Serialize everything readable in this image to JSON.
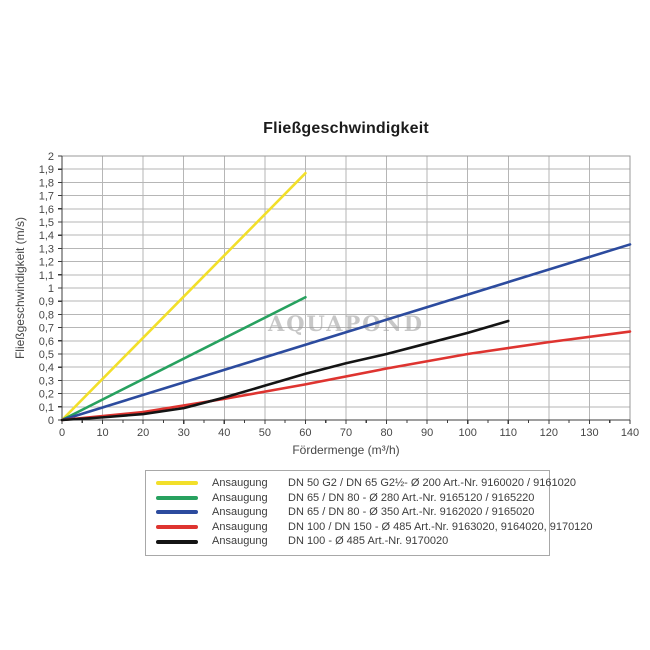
{
  "title": "Fließgeschwindigkeit",
  "watermark": "AQUAPOND",
  "colors": {
    "background": "#ffffff",
    "grid": "#b6b6b6",
    "border": "#9a9a9a",
    "axis": "#3c3c3c",
    "tick_label": "#474747",
    "title": "#1c1c1c",
    "watermark": "#9b9b9b",
    "legend_border": "#a8a8a8",
    "legend_text": "#3d3d3d"
  },
  "chart_data": {
    "type": "line",
    "title": "Fließgeschwindigkeit",
    "xlabel": "Fördermenge (m³/h)",
    "ylabel": "Fließgeschwindigkeit (m/s)",
    "xlim": [
      0,
      140
    ],
    "ylim": [
      0,
      2
    ],
    "grid": true,
    "legend_position": "bottom",
    "x_ticks": [
      0,
      10,
      20,
      30,
      40,
      50,
      60,
      70,
      80,
      90,
      100,
      110,
      120,
      130,
      140
    ],
    "y_ticks": [
      0,
      0.1,
      0.2,
      0.3,
      0.4,
      0.5,
      0.6,
      0.7,
      0.8,
      0.9,
      1,
      1.1,
      1.2,
      1.3,
      1.4,
      1.5,
      1.6,
      1.7,
      1.8,
      1.9,
      2
    ],
    "decimal_separator": ",",
    "series": [
      {
        "name": "Ansaugung",
        "description": "DN 50 G2 / DN 65 G2½- Ø 200 Art.-Nr. 9160020 / 9161020",
        "color": "#f2df2a",
        "points": [
          [
            0,
            0
          ],
          [
            60,
            1.87
          ]
        ]
      },
      {
        "name": "Ansaugung",
        "description": "DN 65 / DN 80 - Ø 280 Art.-Nr. 9165120 / 9165220",
        "color": "#27a15f",
        "points": [
          [
            0,
            0
          ],
          [
            60,
            0.93
          ]
        ]
      },
      {
        "name": "Ansaugung",
        "description": "DN 65 / DN 80  - Ø 350 Art.-Nr. 9162020 / 9165020",
        "color": "#2c4b9e",
        "points": [
          [
            0,
            0
          ],
          [
            140,
            1.33
          ]
        ]
      },
      {
        "name": "Ansaugung",
        "description": "DN 100 / DN 150  - Ø 485 Art.-Nr. 9163020, 9164020, 9170120",
        "color": "#de3430",
        "points": [
          [
            0,
            0
          ],
          [
            20,
            0.06
          ],
          [
            40,
            0.16
          ],
          [
            60,
            0.27
          ],
          [
            80,
            0.39
          ],
          [
            100,
            0.5
          ],
          [
            120,
            0.59
          ],
          [
            140,
            0.67
          ]
        ]
      },
      {
        "name": "Ansaugung",
        "description": "DN 100 - Ø 485 Art.-Nr. 9170020",
        "color": "#141414",
        "points": [
          [
            0,
            0
          ],
          [
            10,
            0.02
          ],
          [
            20,
            0.045
          ],
          [
            30,
            0.09
          ],
          [
            40,
            0.17
          ],
          [
            50,
            0.26
          ],
          [
            60,
            0.35
          ],
          [
            70,
            0.43
          ],
          [
            80,
            0.5
          ],
          [
            90,
            0.58
          ],
          [
            100,
            0.66
          ],
          [
            110,
            0.75
          ]
        ]
      }
    ]
  }
}
